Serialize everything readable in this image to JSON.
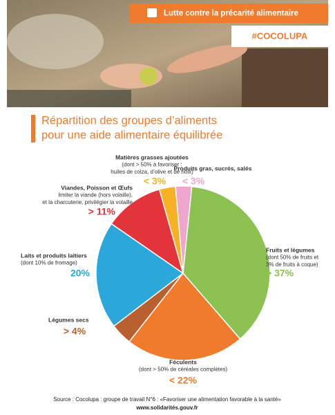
{
  "header": {
    "banner": "Lutte contre la précarité alimentaire",
    "hashtag": "#COCOLUPA"
  },
  "chart_data": {
    "type": "pie",
    "title": [
      "Répartition des groupes d’aliments",
      "pour une aide alimentaire équilibrée"
    ],
    "categories": [
      "Produits gras, sucrés, salés",
      "Fruits et légumes",
      "Féculents",
      "Légumes secs",
      "Laits et produits laitiers",
      "Viandes, Poisson et Œufs",
      "Matières grasses ajoutées"
    ],
    "notes": [
      [],
      [
        "(dont 50% de fruits et",
        "3% de fruits à coque)"
      ],
      [
        "(dont > 50%  de céréales complètes)"
      ],
      [],
      [
        "(dont 10% de fromage)"
      ],
      [
        "limiter la viande (hors volaille),",
        "et la charcuterie, privilégier la volaille"
      ],
      [
        "(dont > 50% à favoriser :",
        "huiles de colza, d’olive et de noix)"
      ]
    ],
    "values": [
      3,
      37,
      22,
      4,
      20,
      11,
      3
    ],
    "value_labels": [
      "< 3%",
      "> 37%",
      "< 22%",
      "> 4%",
      "20%",
      "> 11%",
      "< 3%"
    ],
    "colors": [
      "#eea6cc",
      "#8dc253",
      "#f07b2c",
      "#b8602f",
      "#2ba7d9",
      "#e4343b",
      "#f6b125"
    ]
  },
  "source": [
    "Source : Cocolupa : groupe de travail N°6 : «Favoriser une alimentation favorable à la santé»",
    "www.solidarités.gouv.fr"
  ]
}
